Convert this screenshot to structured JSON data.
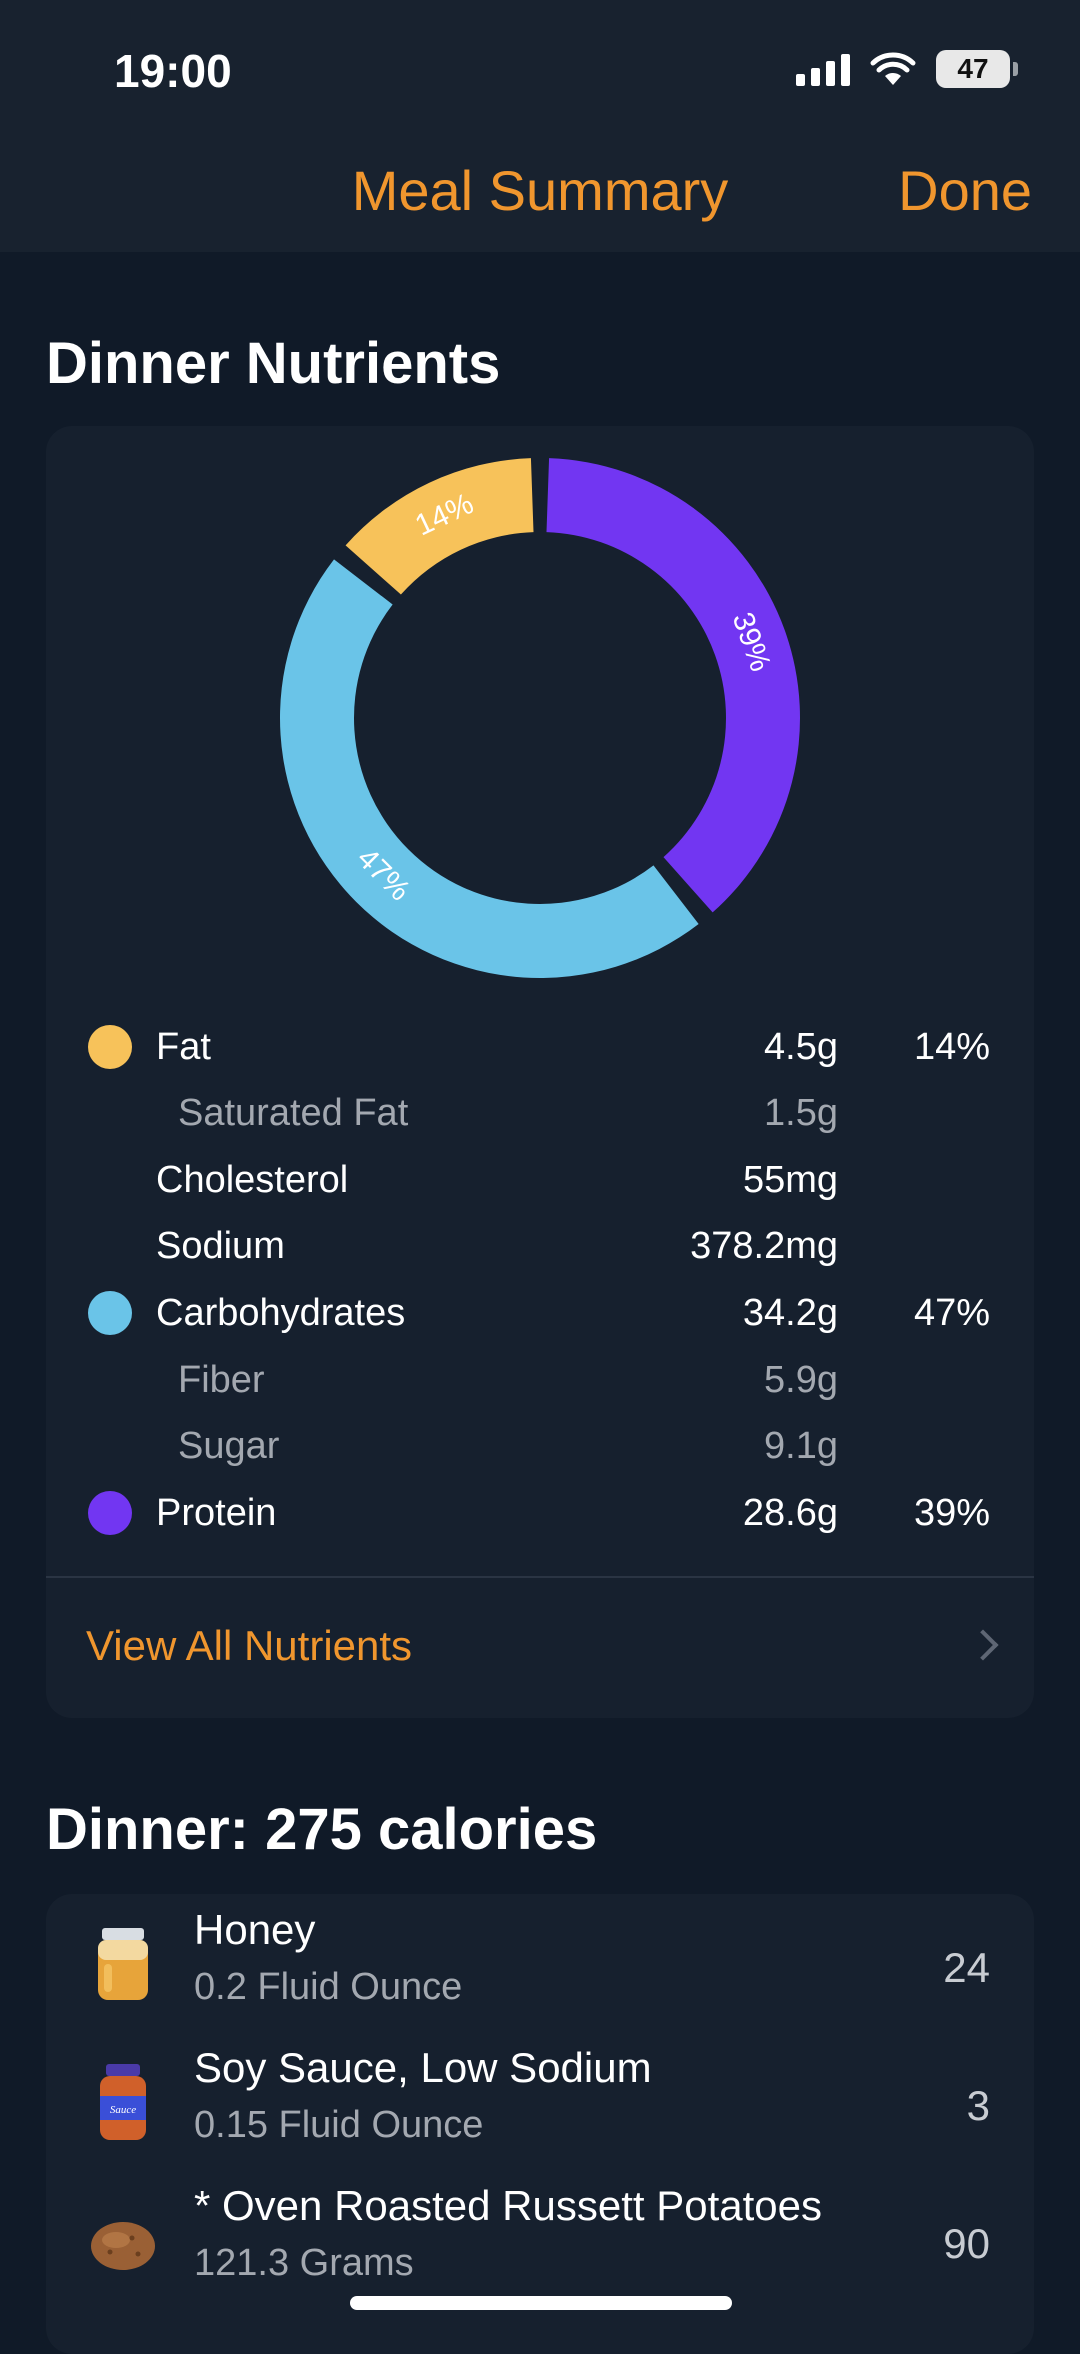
{
  "status": {
    "time": "19:00",
    "battery": "47"
  },
  "nav": {
    "title": "Meal Summary",
    "done": "Done"
  },
  "nutrients_section": {
    "title": "Dinner Nutrients",
    "rows": [
      {
        "label": "Fat",
        "amount": "4.5g",
        "percent": "14%",
        "sub": false,
        "dot": "#f7c25a"
      },
      {
        "label": "Saturated Fat",
        "amount": "1.5g",
        "percent": "",
        "sub": true
      },
      {
        "label": "Cholesterol",
        "amount": "55mg",
        "percent": "",
        "sub": false
      },
      {
        "label": "Sodium",
        "amount": "378.2mg",
        "percent": "",
        "sub": false
      },
      {
        "label": "Carbohydrates",
        "amount": "34.2g",
        "percent": "47%",
        "sub": false,
        "dot": "#6ac4e8"
      },
      {
        "label": "Fiber",
        "amount": "5.9g",
        "percent": "",
        "sub": true
      },
      {
        "label": "Sugar",
        "amount": "9.1g",
        "percent": "",
        "sub": true
      },
      {
        "label": "Protein",
        "amount": "28.6g",
        "percent": "39%",
        "sub": false,
        "dot": "#7236f2"
      }
    ],
    "view_all": "View All Nutrients"
  },
  "chart_data": {
    "type": "pie",
    "categories": [
      "Fat",
      "Carbohydrates",
      "Protein"
    ],
    "values": [
      14,
      47,
      39
    ],
    "labels": [
      "14%",
      "47%",
      "39%"
    ],
    "colors": [
      "#f7c25a",
      "#6ac4e8",
      "#7236f2"
    ]
  },
  "meal_section": {
    "title": "Dinner: 275 calories",
    "items": [
      {
        "name": "Honey",
        "quantity": "0.2 Fluid Ounce",
        "calories": "24",
        "icon": "honey-jar-icon"
      },
      {
        "name": "Soy Sauce, Low Sodium",
        "quantity": "0.15 Fluid Ounce",
        "calories": "3",
        "icon": "sauce-bottle-icon",
        "icon_text": "Sauce"
      },
      {
        "name": "* Oven Roasted Russett Potatoes",
        "quantity": "121.3 Grams",
        "calories": "90",
        "icon": "potato-icon"
      }
    ]
  }
}
